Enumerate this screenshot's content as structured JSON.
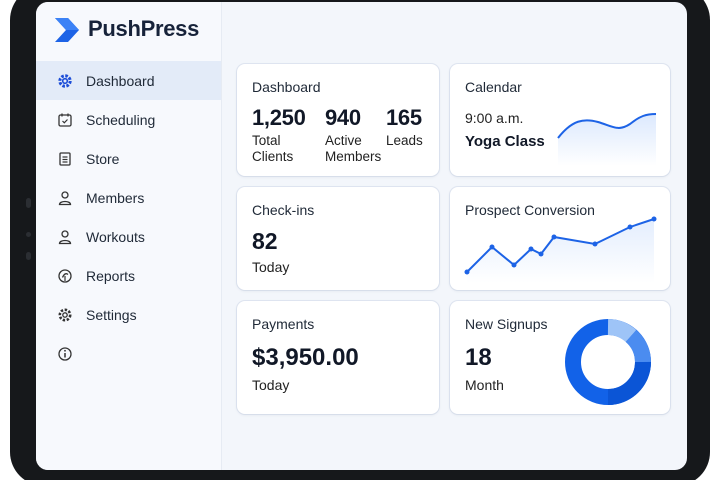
{
  "app": {
    "name": "PushPress",
    "brand_color": "#2563eb"
  },
  "sidebar": {
    "items": [
      {
        "label": "Dashboard",
        "icon": "gear-icon",
        "active": true
      },
      {
        "label": "Scheduling",
        "icon": "calendar-icon"
      },
      {
        "label": "Store",
        "icon": "store-icon"
      },
      {
        "label": "Members",
        "icon": "user-icon"
      },
      {
        "label": "Workouts",
        "icon": "user-icon"
      },
      {
        "label": "Reports",
        "icon": "reports-icon"
      },
      {
        "label": "Settings",
        "icon": "settings-icon"
      },
      {
        "label": "",
        "icon": "info-icon"
      }
    ]
  },
  "dashboard": {
    "title": "Dashboard",
    "stats": [
      {
        "value": "1,250",
        "label1": "Total",
        "label2": "Clients"
      },
      {
        "value": "940",
        "label1": "Active",
        "label2": "Members"
      },
      {
        "value": "165",
        "label1": "Leads",
        "label2": ""
      }
    ]
  },
  "calendar": {
    "title": "Calendar",
    "time": "9:00 a.m.",
    "event": "Yoga Class"
  },
  "checkins": {
    "title": "Check-ins",
    "value": "82",
    "period": "Today"
  },
  "prospect": {
    "title": "Prospect Conversion"
  },
  "payments": {
    "title": "Payments",
    "value": "$3,950.00",
    "period": "Today"
  },
  "signups": {
    "title": "New Signups",
    "value": "18",
    "period": "Month"
  }
}
